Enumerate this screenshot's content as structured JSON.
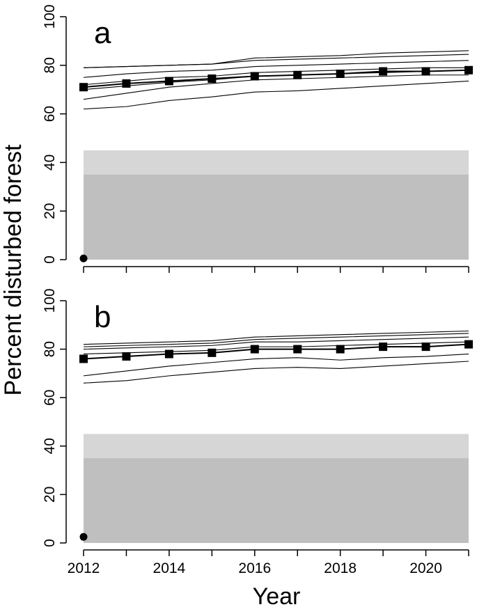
{
  "chart_data": [
    {
      "type": "line",
      "panel_label": "a",
      "xlim": [
        2012,
        2021
      ],
      "ylim": [
        0,
        100
      ],
      "y_ticks": [
        0,
        20,
        40,
        60,
        80,
        100
      ],
      "x_ticks": [
        2012,
        2013,
        2014,
        2015,
        2016,
        2017,
        2018,
        2019,
        2020,
        2021
      ],
      "bands": [
        {
          "ymin": 0,
          "ymax": 45,
          "color": "#d6d6d6"
        },
        {
          "ymin": 0,
          "ymax": 35,
          "color": "#bfbfbf"
        }
      ],
      "x": [
        2012,
        2013,
        2014,
        2015,
        2016,
        2017,
        2018,
        2019,
        2020,
        2021
      ],
      "series": [
        {
          "values": [
            79,
            79.5,
            80,
            80.5,
            83,
            83.5,
            84,
            85,
            85.5,
            86
          ],
          "style": "thin"
        },
        {
          "values": [
            79,
            79.5,
            80,
            80.5,
            82,
            82.5,
            83,
            83.5,
            84,
            84.5
          ],
          "style": "thin"
        },
        {
          "values": [
            75,
            76.5,
            77.5,
            78,
            79.5,
            80,
            80.5,
            81,
            81.5,
            82
          ],
          "style": "thin"
        },
        {
          "values": [
            72,
            73.5,
            75,
            75.5,
            77,
            77.5,
            78,
            78.5,
            79,
            79
          ],
          "style": "thin"
        },
        {
          "values": [
            70,
            71.5,
            73,
            74,
            75.5,
            76,
            76.5,
            77,
            77.5,
            78
          ],
          "style": "thin"
        },
        {
          "values": [
            66,
            68.5,
            71,
            72.5,
            74,
            74.5,
            75,
            75.5,
            76,
            76
          ],
          "style": "thin"
        },
        {
          "values": [
            62,
            63,
            65.5,
            67,
            69,
            69.5,
            70.5,
            71.5,
            72.5,
            73.5
          ],
          "style": "thin"
        },
        {
          "values": [
            71,
            72.5,
            73.5,
            74.5,
            75.5,
            76,
            76.5,
            77.5,
            77.5,
            78
          ],
          "style": "mean",
          "marker": "square"
        }
      ],
      "points": [
        {
          "x": 2012,
          "y": 0.5,
          "marker": "circle"
        }
      ]
    },
    {
      "type": "line",
      "panel_label": "b",
      "xlim": [
        2012,
        2021
      ],
      "ylim": [
        0,
        100
      ],
      "y_ticks": [
        0,
        20,
        40,
        60,
        80,
        100
      ],
      "x_ticks": [
        2012,
        2013,
        2014,
        2015,
        2016,
        2017,
        2018,
        2019,
        2020,
        2021
      ],
      "x_tick_labels": [
        "2012",
        "2014",
        "2016",
        "2018",
        "2020"
      ],
      "bands": [
        {
          "ymin": 0,
          "ymax": 45,
          "color": "#d6d6d6"
        },
        {
          "ymin": 0,
          "ymax": 35,
          "color": "#bfbfbf"
        }
      ],
      "x": [
        2012,
        2013,
        2014,
        2015,
        2016,
        2017,
        2018,
        2019,
        2020,
        2021
      ],
      "series": [
        {
          "values": [
            82,
            82.5,
            83,
            83.5,
            85,
            85.5,
            86,
            86.5,
            87,
            87.5
          ],
          "style": "thin"
        },
        {
          "values": [
            81,
            81.5,
            82,
            82.5,
            84,
            84.5,
            85,
            85.5,
            86,
            86.5
          ],
          "style": "thin"
        },
        {
          "values": [
            80,
            80.5,
            81,
            81.5,
            83,
            83,
            83.5,
            84,
            84.5,
            85
          ],
          "style": "thin"
        },
        {
          "values": [
            78,
            78.5,
            79,
            79.5,
            81,
            81,
            81.5,
            82,
            82.5,
            83
          ],
          "style": "thin"
        },
        {
          "values": [
            69,
            71,
            73,
            74.5,
            76,
            76.5,
            75.5,
            76.5,
            77,
            78
          ],
          "style": "thin"
        },
        {
          "values": [
            66,
            67,
            69,
            70.5,
            72,
            72.5,
            72,
            73,
            74,
            75
          ],
          "style": "thin"
        },
        {
          "values": [
            76,
            77,
            78,
            78.5,
            80,
            80,
            80,
            81,
            81,
            82
          ],
          "style": "mean",
          "marker": "square"
        }
      ],
      "points": [
        {
          "x": 2012,
          "y": 2.5,
          "marker": "circle"
        }
      ]
    }
  ],
  "axes": {
    "ylabel": "Percent disturbed forest",
    "xlabel": "Year"
  }
}
